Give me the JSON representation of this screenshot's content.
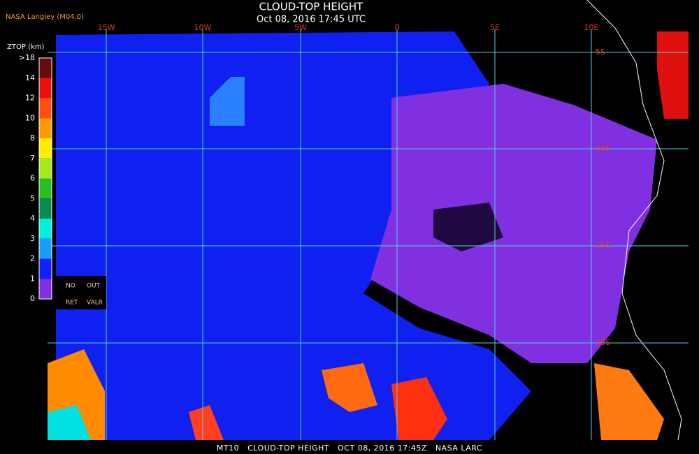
{
  "header": {
    "title": "CLOUD-TOP HEIGHT",
    "subtitle": "Oct 08, 2016 17:45 UTC",
    "source": "NASA Langley (M04.0)"
  },
  "colorbar": {
    "title": "ZTOP (km)",
    "labels": [
      ">18",
      "14",
      "12",
      "10",
      "8",
      "7",
      "6",
      "5",
      "4",
      "3",
      "2",
      "1",
      "0"
    ],
    "colors": [
      "#6a0a0a",
      "#ee1010",
      "#ff5010",
      "#ff9a00",
      "#ffee00",
      "#a8e820",
      "#28c020",
      "#088a50",
      "#00f0e0",
      "#1a9cff",
      "#1020ff",
      "#8030e0"
    ],
    "notes": [
      "NO",
      "OUT",
      "RET",
      "VALR"
    ]
  },
  "grid": {
    "longitudes": [
      "15W",
      "10W",
      "5W",
      "0",
      "5E",
      "10E"
    ],
    "latitudes": [
      "5S",
      "10S",
      "15S",
      "20S"
    ]
  },
  "footer": "MT10   CLOUD-TOP HEIGHT   OCT 08, 2016 17:45Z   NASA LARC"
}
